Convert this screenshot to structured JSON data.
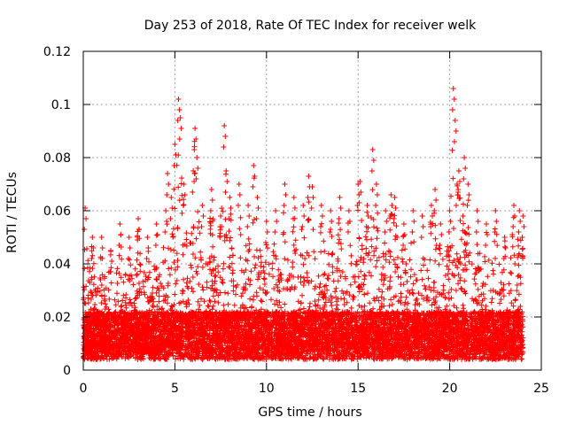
{
  "chart_data": {
    "type": "scatter",
    "title": "Day 253 of 2018, Rate Of TEC Index for receiver welk",
    "xlabel": "GPS time / hours",
    "ylabel": "ROTI / TECUs",
    "xlim": [
      0,
      25
    ],
    "ylim": [
      0,
      0.12
    ],
    "xticks": [
      "0",
      "5",
      "10",
      "15",
      "20",
      "25"
    ],
    "yticks": [
      "0",
      "0.02",
      "0.04",
      "0.06",
      "0.08",
      "0.1",
      "0.12"
    ],
    "grid": true,
    "marker": "+",
    "color": "#ff0000",
    "x_range_of_data": [
      0,
      24
    ],
    "series": [
      {
        "values_note": "",
        "x": [
          0.1,
          0.5,
          1.0,
          1.5,
          2.0,
          2.5,
          3.0,
          3.5,
          4.0,
          4.5,
          4.6,
          4.8,
          5.0,
          5.2,
          5.3,
          5.5,
          6.0,
          6.1,
          6.2,
          6.5,
          7.0,
          7.5,
          7.7,
          7.8,
          8.0,
          8.5,
          9.0,
          9.3,
          9.5,
          10.0,
          10.5,
          11.0,
          11.5,
          12.0,
          12.3,
          12.5,
          13.0,
          13.5,
          14.0,
          14.5,
          15.0,
          15.1,
          15.5,
          15.8,
          16.0,
          16.5,
          16.8,
          17.0,
          17.5,
          18.0,
          18.5,
          19.0,
          19.2,
          19.5,
          20.0,
          20.2,
          20.3,
          20.4,
          20.5,
          20.8,
          21.0,
          21.5,
          22.0,
          22.5,
          23.0,
          23.5,
          23.8,
          24.0
        ],
        "y": [
          0.061,
          0.05,
          0.05,
          0.045,
          0.055,
          0.05,
          0.057,
          0.05,
          0.055,
          0.06,
          0.074,
          0.065,
          0.085,
          0.102,
          0.095,
          0.07,
          0.075,
          0.091,
          0.08,
          0.062,
          0.068,
          0.058,
          0.092,
          0.075,
          0.065,
          0.07,
          0.062,
          0.077,
          0.065,
          0.056,
          0.06,
          0.07,
          0.065,
          0.062,
          0.073,
          0.069,
          0.062,
          0.06,
          0.065,
          0.06,
          0.07,
          0.071,
          0.062,
          0.083,
          0.07,
          0.06,
          0.066,
          0.065,
          0.055,
          0.06,
          0.058,
          0.062,
          0.068,
          0.055,
          0.06,
          0.106,
          0.094,
          0.07,
          0.075,
          0.08,
          0.07,
          0.06,
          0.055,
          0.06,
          0.05,
          0.062,
          0.06,
          0.058
        ]
      }
    ]
  }
}
